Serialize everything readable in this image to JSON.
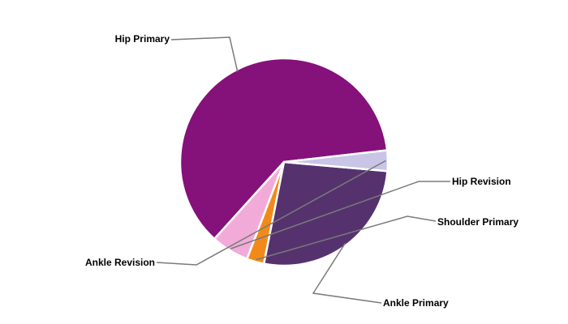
{
  "chart_data": {
    "type": "pie",
    "title": "",
    "legend": "none",
    "slices": [
      {
        "label": "Hip Primary",
        "value": 61.5,
        "color": "#85117A"
      },
      {
        "label": "Hip Revision",
        "value": 5.9,
        "color": "#F2ABD9"
      },
      {
        "label": "Shoulder Primary",
        "value": 2.7,
        "color": "#F28A1A"
      },
      {
        "label": "Ankle Primary",
        "value": 26.7,
        "color": "#55326E"
      },
      {
        "label": "Ankle Revision",
        "value": 3.2,
        "color": "#C9C5E6"
      }
    ]
  }
}
